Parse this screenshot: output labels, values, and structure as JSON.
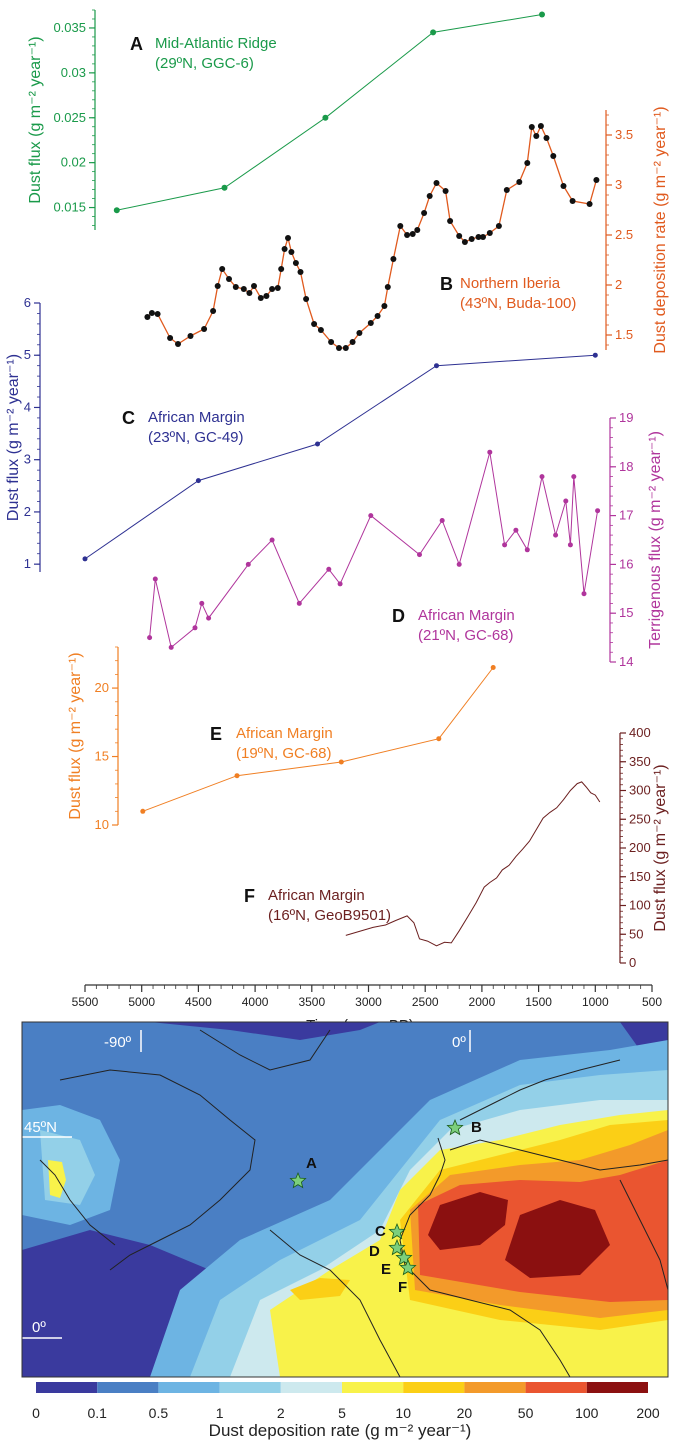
{
  "chart_data": [
    {
      "type": "line",
      "panel": "A",
      "title": "Mid-Atlantic Ridge",
      "subtitle": "(29ºN, GGC-6)",
      "ylabel": "Dust flux  (g m⁻² year⁻¹)",
      "ylim": [
        0.0125,
        0.037
      ],
      "yticks": [
        0.015,
        0.02,
        0.025,
        0.03,
        0.035
      ],
      "color": "#1a9a4a",
      "x": [
        5220,
        4270,
        3380,
        2430,
        1470
      ],
      "values": [
        0.0147,
        0.0172,
        0.025,
        0.0345,
        0.0365
      ]
    },
    {
      "type": "line",
      "panel": "B",
      "title": "Northern Iberia",
      "subtitle": "(43ºN, Buda-100)",
      "ylabel": "Dust deposition rate  (g m⁻² year⁻¹)",
      "ylim": [
        1.35,
        3.75
      ],
      "yticks": [
        1.5,
        2.0,
        2.5,
        3.0,
        3.5
      ],
      "color": "#e05a1e",
      "x": [
        4950,
        4910,
        4860,
        4750,
        4680,
        4570,
        4450,
        4370,
        4330,
        4290,
        4230,
        4170,
        4100,
        4050,
        4010,
        3950,
        3900,
        3850,
        3800,
        3770,
        3740,
        3710,
        3680,
        3640,
        3600,
        3550,
        3480,
        3420,
        3330,
        3260,
        3200,
        3140,
        3080,
        2980,
        2920,
        2860,
        2830,
        2780,
        2720,
        2660,
        2610,
        2570,
        2510,
        2460,
        2400,
        2320,
        2280,
        2200,
        2150,
        2090,
        2030,
        1990,
        1930,
        1850,
        1780,
        1670,
        1600,
        1560,
        1520,
        1480,
        1430,
        1370,
        1280,
        1200,
        1050,
        990
      ],
      "values": [
        1.68,
        1.72,
        1.71,
        1.47,
        1.41,
        1.49,
        1.56,
        1.74,
        1.99,
        2.16,
        2.06,
        1.98,
        1.96,
        1.92,
        1.99,
        1.87,
        1.89,
        1.96,
        1.97,
        2.16,
        2.36,
        2.47,
        2.33,
        2.22,
        2.13,
        1.86,
        1.61,
        1.55,
        1.43,
        1.37,
        1.37,
        1.43,
        1.52,
        1.62,
        1.69,
        1.79,
        1.98,
        2.26,
        2.59,
        2.5,
        2.51,
        2.55,
        2.72,
        2.89,
        3.02,
        2.94,
        2.64,
        2.49,
        2.43,
        2.46,
        2.48,
        2.48,
        2.52,
        2.59,
        2.95,
        3.03,
        3.22,
        3.58,
        3.49,
        3.59,
        3.47,
        3.29,
        2.99,
        2.84,
        2.81,
        3.05
      ]
    },
    {
      "type": "line",
      "panel": "C",
      "title": "African Margin",
      "subtitle": "(23ºN, GC-49)",
      "ylabel": "Dust flux (g m⁻² year⁻¹)",
      "ylim": [
        0.85,
        6.0
      ],
      "yticks": [
        1,
        2,
        3,
        4,
        5,
        6
      ],
      "color": "#2e3192",
      "x": [
        5500,
        4500,
        3450,
        2400,
        1000
      ],
      "values": [
        1.1,
        2.6,
        3.3,
        4.8,
        5.0
      ]
    },
    {
      "type": "line",
      "panel": "D",
      "title": "African Margin",
      "subtitle": "(21ºN, GC-68)",
      "ylabel": "Terrigenous flux (g m⁻² year⁻¹)",
      "ylim": [
        14.0,
        19.0
      ],
      "yticks": [
        14,
        15,
        16,
        17,
        18,
        19
      ],
      "color": "#b0359c",
      "x": [
        4930,
        4880,
        4740,
        4530,
        4470,
        4410,
        4060,
        3850,
        3610,
        3350,
        3250,
        2980,
        2550,
        2350,
        2200,
        1930,
        1800,
        1700,
        1600,
        1470,
        1350,
        1260,
        1220,
        1190,
        1100,
        980
      ],
      "values": [
        14.5,
        15.7,
        14.3,
        14.7,
        15.2,
        14.9,
        16.0,
        16.5,
        15.2,
        15.9,
        15.6,
        17.0,
        16.2,
        16.9,
        16.0,
        18.3,
        16.4,
        16.7,
        16.3,
        17.8,
        16.6,
        17.3,
        16.4,
        17.8,
        15.4,
        17.1
      ]
    },
    {
      "type": "line",
      "panel": "E",
      "title": "African Margin",
      "subtitle": "(19ºN, GC-68)",
      "ylabel": "Dust flux (g m⁻² year⁻¹)",
      "ylim": [
        10.0,
        23.0
      ],
      "yticks": [
        10,
        15,
        20
      ],
      "color": "#f07f23",
      "x": [
        4990,
        4160,
        3240,
        2380,
        1900
      ],
      "values": [
        11.0,
        13.6,
        14.6,
        16.3,
        21.5
      ]
    },
    {
      "type": "line",
      "panel": "F",
      "title": "African Margin",
      "subtitle": "(16ºN, GeoB9501)",
      "ylabel": "Dust flux (g m⁻² year⁻¹)",
      "ylim": [
        0,
        400
      ],
      "yticks": [
        0,
        50,
        100,
        150,
        200,
        250,
        300,
        350,
        400
      ],
      "color": "#6b1f1f",
      "x": [
        3200,
        3080,
        2960,
        2850,
        2760,
        2660,
        2600,
        2550,
        2480,
        2400,
        2330,
        2270,
        2200,
        2120,
        2050,
        1980,
        1930,
        1870,
        1820,
        1760,
        1700,
        1640,
        1580,
        1520,
        1460,
        1400,
        1340,
        1280,
        1220,
        1160,
        1120,
        1080,
        1040,
        1000,
        960
      ],
      "values": [
        48,
        55,
        62,
        66,
        74,
        82,
        70,
        42,
        38,
        30,
        36,
        35,
        56,
        82,
        105,
        132,
        140,
        148,
        162,
        170,
        185,
        198,
        212,
        232,
        252,
        262,
        270,
        284,
        300,
        312,
        315,
        306,
        296,
        292,
        280
      ]
    },
    {
      "type": "heatmap",
      "panel": "map",
      "place_labels": [
        "-90º",
        "0º",
        "45ºN",
        "0º"
      ],
      "sites": [
        "A",
        "B",
        "C",
        "D",
        "E",
        "F"
      ],
      "legend_ticks": [
        "0",
        "0.1",
        "0.5",
        "1",
        "2",
        "5",
        "10",
        "20",
        "50",
        "100",
        "200"
      ],
      "legend_label": "Dust deposition rate (g m⁻² year⁻¹)",
      "colors": [
        "#3a3a9e",
        "#4a7fc4",
        "#6db4e3",
        "#93d0e8",
        "#cde9ee",
        "#f8f24a",
        "#fbcf16",
        "#f39a2a",
        "#ea5530",
        "#8b1010"
      ]
    }
  ],
  "xaxis": {
    "label": "Time (years BP)",
    "ticks": [
      5500,
      5000,
      4500,
      4000,
      3500,
      3000,
      2500,
      2000,
      1500,
      1000,
      500
    ]
  },
  "axis_text": {
    "a_label": "Dust flux  (g m⁻² year⁻¹)",
    "b_label": "Dust deposition rate  (g m⁻² year⁻¹)",
    "c_label": "Dust flux (g m⁻² year⁻¹)",
    "d_label": "Terrigenous flux (g m⁻² year⁻¹)",
    "e_label": "Dust flux (g m⁻² year⁻¹)",
    "f_label": "Dust flux (g m⁻² year⁻¹)"
  }
}
